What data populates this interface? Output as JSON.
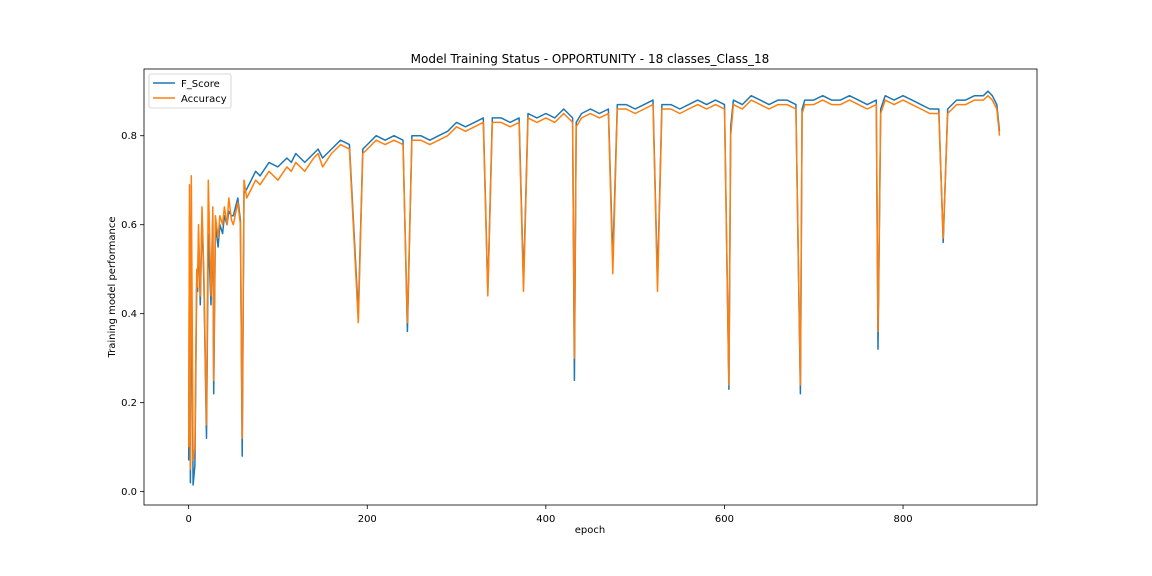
{
  "chart_data": {
    "type": "line",
    "title": "Model Training Status - OPPORTUNITY - 18 classes_Class_18",
    "xlabel": "epoch",
    "ylabel": "Training model performance",
    "xlim": [
      -50,
      950
    ],
    "ylim": [
      -0.03,
      0.95
    ],
    "xticks": [
      0,
      200,
      400,
      600,
      800
    ],
    "yticks": [
      0.0,
      0.2,
      0.4,
      0.6,
      0.8
    ],
    "xtick_labels": [
      "0",
      "200",
      "400",
      "600",
      "800"
    ],
    "ytick_labels": [
      "0.0",
      "0.2",
      "0.4",
      "0.6",
      "0.8"
    ],
    "grid": false,
    "legend_position": "top-left",
    "series": [
      {
        "name": "F_Score",
        "color": "#1f77b4",
        "x": [
          0,
          1,
          2,
          3,
          5,
          7,
          9,
          10,
          11,
          13,
          15,
          17,
          20,
          22,
          25,
          27,
          28,
          30,
          33,
          35,
          38,
          40,
          43,
          45,
          48,
          50,
          55,
          58,
          60,
          62,
          65,
          70,
          75,
          80,
          90,
          100,
          110,
          115,
          120,
          130,
          140,
          145,
          150,
          160,
          170,
          180,
          190,
          195,
          200,
          210,
          220,
          230,
          240,
          245,
          250,
          260,
          270,
          280,
          290,
          300,
          310,
          320,
          330,
          335,
          340,
          350,
          360,
          370,
          375,
          380,
          390,
          400,
          410,
          420,
          430,
          432,
          434,
          440,
          450,
          460,
          470,
          475,
          480,
          490,
          500,
          510,
          520,
          525,
          530,
          540,
          550,
          560,
          570,
          580,
          590,
          600,
          605,
          607,
          610,
          620,
          630,
          640,
          650,
          660,
          670,
          680,
          685,
          687,
          690,
          700,
          710,
          720,
          730,
          740,
          750,
          760,
          770,
          772,
          775,
          780,
          790,
          800,
          810,
          820,
          830,
          840,
          845,
          850,
          860,
          870,
          880,
          890,
          895,
          900,
          905,
          908
        ],
        "y": [
          0.07,
          0.62,
          0.02,
          0.55,
          0.015,
          0.06,
          0.47,
          0.45,
          0.58,
          0.42,
          0.62,
          0.48,
          0.12,
          0.58,
          0.42,
          0.62,
          0.22,
          0.6,
          0.55,
          0.6,
          0.58,
          0.62,
          0.6,
          0.63,
          0.62,
          0.62,
          0.66,
          0.61,
          0.08,
          0.67,
          0.68,
          0.7,
          0.72,
          0.71,
          0.74,
          0.73,
          0.75,
          0.74,
          0.76,
          0.74,
          0.76,
          0.77,
          0.75,
          0.77,
          0.79,
          0.78,
          0.4,
          0.77,
          0.78,
          0.8,
          0.79,
          0.8,
          0.79,
          0.36,
          0.8,
          0.8,
          0.79,
          0.8,
          0.81,
          0.83,
          0.82,
          0.83,
          0.84,
          0.45,
          0.84,
          0.84,
          0.83,
          0.84,
          0.47,
          0.85,
          0.84,
          0.85,
          0.84,
          0.86,
          0.84,
          0.25,
          0.83,
          0.85,
          0.86,
          0.85,
          0.86,
          0.52,
          0.87,
          0.87,
          0.86,
          0.87,
          0.88,
          0.47,
          0.87,
          0.87,
          0.86,
          0.87,
          0.88,
          0.87,
          0.88,
          0.87,
          0.23,
          0.82,
          0.88,
          0.87,
          0.89,
          0.88,
          0.87,
          0.88,
          0.88,
          0.87,
          0.22,
          0.86,
          0.88,
          0.88,
          0.89,
          0.88,
          0.88,
          0.89,
          0.88,
          0.87,
          0.88,
          0.32,
          0.86,
          0.89,
          0.88,
          0.89,
          0.88,
          0.87,
          0.86,
          0.86,
          0.56,
          0.86,
          0.88,
          0.88,
          0.89,
          0.89,
          0.9,
          0.89,
          0.87,
          0.81
        ]
      },
      {
        "name": "Accuracy",
        "color": "#ff7f0e",
        "x": [
          0,
          1,
          2,
          3,
          5,
          7,
          9,
          10,
          11,
          13,
          15,
          17,
          20,
          22,
          25,
          27,
          28,
          30,
          33,
          35,
          38,
          40,
          43,
          45,
          48,
          50,
          55,
          58,
          60,
          62,
          65,
          70,
          75,
          80,
          90,
          100,
          110,
          115,
          120,
          130,
          140,
          145,
          150,
          160,
          170,
          180,
          190,
          195,
          200,
          210,
          220,
          230,
          240,
          245,
          250,
          260,
          270,
          280,
          290,
          300,
          310,
          320,
          330,
          335,
          340,
          350,
          360,
          370,
          375,
          380,
          390,
          400,
          410,
          420,
          430,
          432,
          434,
          440,
          450,
          460,
          470,
          475,
          480,
          490,
          500,
          510,
          520,
          525,
          530,
          540,
          550,
          560,
          570,
          580,
          590,
          600,
          605,
          607,
          610,
          620,
          630,
          640,
          650,
          660,
          670,
          680,
          685,
          687,
          690,
          700,
          710,
          720,
          730,
          740,
          750,
          760,
          770,
          772,
          775,
          780,
          790,
          800,
          810,
          820,
          830,
          840,
          845,
          850,
          860,
          870,
          880,
          890,
          895,
          900,
          905,
          908
        ],
        "y": [
          0.1,
          0.69,
          0.05,
          0.71,
          0.07,
          0.1,
          0.5,
          0.46,
          0.6,
          0.44,
          0.64,
          0.5,
          0.15,
          0.7,
          0.44,
          0.64,
          0.25,
          0.62,
          0.57,
          0.62,
          0.6,
          0.64,
          0.6,
          0.66,
          0.61,
          0.6,
          0.65,
          0.6,
          0.12,
          0.7,
          0.66,
          0.68,
          0.7,
          0.69,
          0.72,
          0.7,
          0.73,
          0.72,
          0.74,
          0.72,
          0.75,
          0.76,
          0.73,
          0.76,
          0.78,
          0.77,
          0.38,
          0.76,
          0.77,
          0.79,
          0.78,
          0.79,
          0.78,
          0.38,
          0.79,
          0.79,
          0.78,
          0.79,
          0.8,
          0.82,
          0.81,
          0.82,
          0.83,
          0.44,
          0.83,
          0.83,
          0.82,
          0.83,
          0.45,
          0.84,
          0.83,
          0.84,
          0.83,
          0.85,
          0.83,
          0.3,
          0.82,
          0.84,
          0.85,
          0.84,
          0.85,
          0.49,
          0.86,
          0.86,
          0.85,
          0.86,
          0.87,
          0.45,
          0.86,
          0.86,
          0.85,
          0.86,
          0.87,
          0.86,
          0.87,
          0.86,
          0.24,
          0.8,
          0.87,
          0.86,
          0.88,
          0.87,
          0.86,
          0.87,
          0.87,
          0.86,
          0.24,
          0.85,
          0.87,
          0.87,
          0.88,
          0.87,
          0.87,
          0.88,
          0.87,
          0.86,
          0.87,
          0.36,
          0.85,
          0.88,
          0.87,
          0.88,
          0.87,
          0.86,
          0.85,
          0.85,
          0.57,
          0.85,
          0.87,
          0.87,
          0.88,
          0.88,
          0.89,
          0.88,
          0.86,
          0.8
        ]
      }
    ]
  }
}
